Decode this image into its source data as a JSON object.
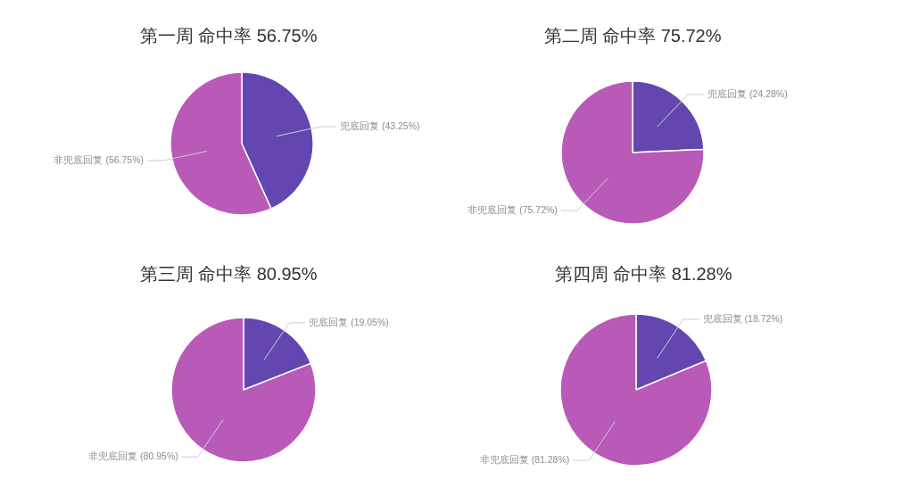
{
  "chart_data": [
    {
      "type": "pie",
      "title": "第一周 命中率 56.75%",
      "categories": [
        "兜底回复",
        "非兜底回复"
      ],
      "values": [
        43.25,
        56.75
      ],
      "colors": [
        "#6446b0",
        "#b95ab9"
      ],
      "value_labels": [
        "(43.25%)",
        "(56.75%)"
      ]
    },
    {
      "type": "pie",
      "title": "第二周 命中率 75.72%",
      "categories": [
        "兜底回复",
        "非兜底回复"
      ],
      "values": [
        24.28,
        75.72
      ],
      "colors": [
        "#6446b0",
        "#b95ab9"
      ],
      "value_labels": [
        "(24.28%)",
        "(75.72%)"
      ]
    },
    {
      "type": "pie",
      "title": "第三周 命中率 80.95%",
      "categories": [
        "兜底回复",
        "非兜底回复"
      ],
      "values": [
        19.05,
        80.95
      ],
      "colors": [
        "#6446b0",
        "#b95ab9"
      ],
      "value_labels": [
        "(19.05%)",
        "(80.95%)"
      ]
    },
    {
      "type": "pie",
      "title": "第四周 命中率 81.28%",
      "categories": [
        "兜底回复",
        "非兜底回复"
      ],
      "values": [
        18.72,
        81.28
      ],
      "colors": [
        "#6446b0",
        "#b95ab9"
      ],
      "value_labels": [
        "(18.72%)",
        "(81.28%)"
      ]
    }
  ]
}
